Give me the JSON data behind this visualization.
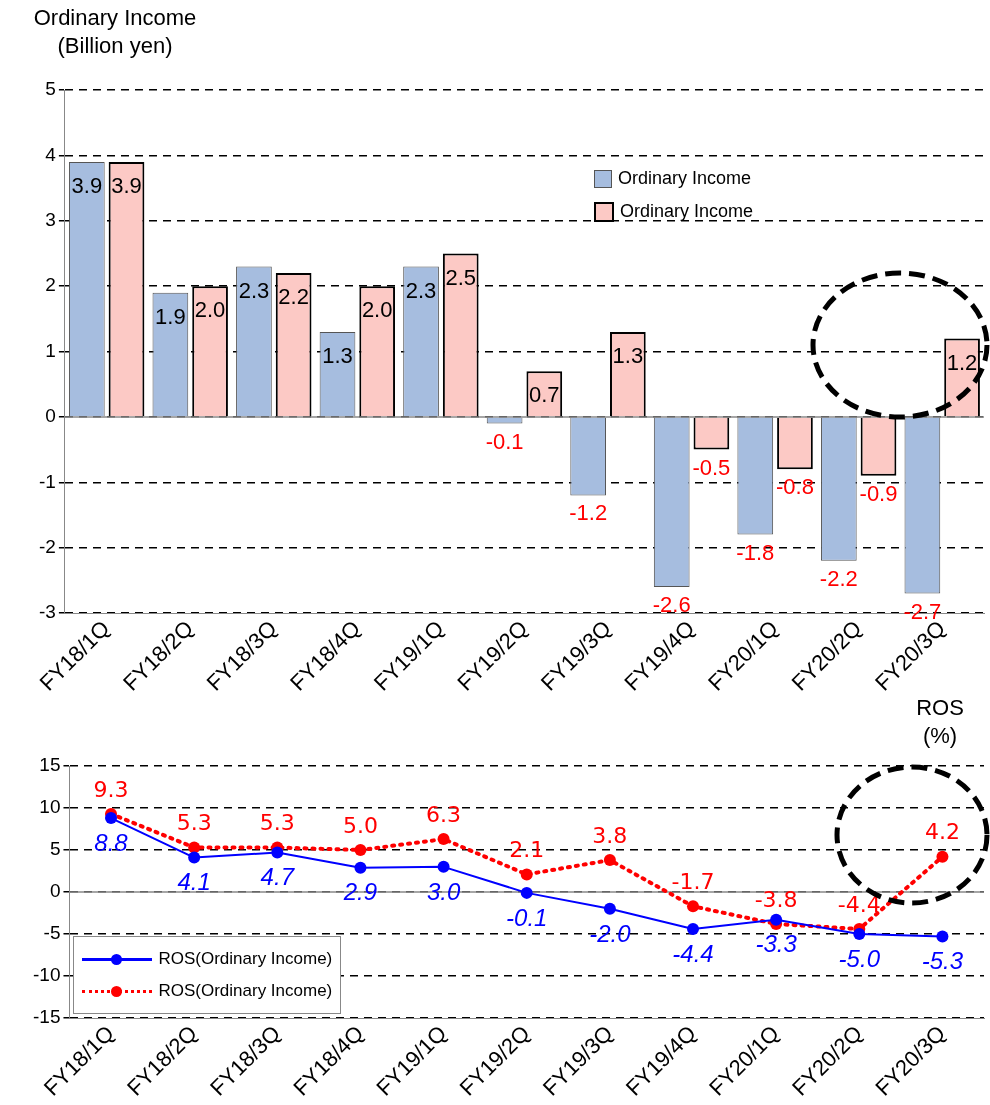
{
  "chart_data": [
    {
      "type": "bar",
      "ylabel": "Ordinary Income (Billion yen)",
      "categories": [
        "FY18/1Q",
        "FY18/2Q",
        "FY18/3Q",
        "FY18/4Q",
        "FY19/1Q",
        "FY19/2Q",
        "FY19/3Q",
        "FY19/4Q",
        "FY20/1Q",
        "FY20/2Q",
        "FY20/3Q"
      ],
      "series": [
        {
          "name": "Ordinary Income",
          "color": "#a6bddf",
          "values": [
            3.9,
            1.9,
            2.3,
            1.3,
            2.3,
            -0.1,
            -1.2,
            -2.6,
            -1.8,
            -2.2,
            -2.7
          ],
          "value_labels": [
            "3.9",
            "1.9",
            "2.3",
            "1.3",
            "2.3",
            "-0.1",
            "-1.2",
            "-2.6",
            "-1.8",
            "-2.2",
            "-2.7"
          ]
        },
        {
          "name": "Ordinary Income",
          "color": "#fcc9c5",
          "values": [
            3.9,
            2.0,
            2.2,
            2.0,
            2.5,
            0.7,
            1.3,
            -0.5,
            -0.8,
            -0.9,
            1.2
          ],
          "value_labels": [
            "3.9",
            "2.0",
            "2.2",
            "2.0",
            "2.5",
            "0.7",
            "1.3",
            "-0.5",
            "-0.8",
            "-0.9",
            "1.2"
          ]
        }
      ],
      "ylim": [
        -3,
        5
      ],
      "yticks": [
        -3,
        -2,
        -1,
        0,
        1,
        2,
        3,
        4,
        5
      ],
      "grid": "y",
      "legend": "top right"
    },
    {
      "type": "line",
      "ylabel": "ROS (%)",
      "categories": [
        "FY18/1Q",
        "FY18/2Q",
        "FY18/3Q",
        "FY18/4Q",
        "FY19/1Q",
        "FY19/2Q",
        "FY19/3Q",
        "FY19/4Q",
        "FY20/1Q",
        "FY20/2Q",
        "FY20/3Q"
      ],
      "series": [
        {
          "name": "ROS(Ordinary Income)",
          "color": "#0000ff",
          "line_style": "solid",
          "values": [
            8.8,
            4.1,
            4.7,
            2.9,
            3.0,
            -0.1,
            -2.0,
            -4.4,
            -3.3,
            -5.0,
            -5.3
          ],
          "value_labels": [
            "8.8",
            "4.1",
            "4.7",
            "2.9",
            "3.0",
            "-0.1",
            "-2.0",
            "-4.4",
            "-3.3",
            "-5.0",
            "-5.3"
          ]
        },
        {
          "name": "ROS(Ordinary Income)",
          "color": "#ff0000",
          "line_style": "dotted",
          "values": [
            9.3,
            5.3,
            5.3,
            5.0,
            6.3,
            2.1,
            3.8,
            -1.7,
            -3.8,
            -4.4,
            4.2
          ],
          "value_labels": [
            "9.3",
            "5.3",
            "5.3",
            "5.0",
            "6.3",
            "2.1",
            "3.8",
            "-1.7",
            "-3.8",
            "-4.4",
            "4.2"
          ]
        }
      ],
      "ylim": [
        -15,
        15
      ],
      "yticks": [
        -15,
        -10,
        -5,
        0,
        5,
        10,
        15
      ],
      "grid": "y",
      "marker": "circle",
      "legend": "bottom left"
    }
  ]
}
